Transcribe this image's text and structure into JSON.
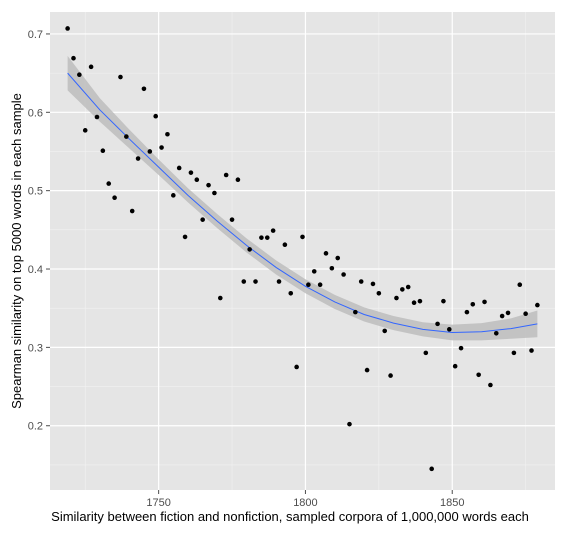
{
  "chart_data": {
    "type": "scatter",
    "xlabel": "Similarity between fiction and nonfiction, sampled corpora of 1,000,000 words each",
    "ylabel": "Spearman similarity on top 5000 words in each sample",
    "xlim": [
      1713,
      1885
    ],
    "ylim": [
      0.118,
      0.728
    ],
    "x_ticks": [
      1750,
      1800,
      1850
    ],
    "y_ticks": [
      0.2,
      0.3,
      0.4,
      0.5,
      0.6,
      0.7
    ],
    "x_tick_labels": [
      "1750",
      "1800",
      "1850"
    ],
    "y_tick_labels": [
      "0.2",
      "0.3",
      "0.4",
      "0.5",
      "0.6",
      "0.7"
    ],
    "grid": true,
    "colors": {
      "panel": "#e5e5e5",
      "grid_major": "#ffffff",
      "grid_minor": "#f2f2f2",
      "points": "#000000",
      "trend": "#3366ff",
      "band": "#bdbdbd"
    },
    "series": [
      {
        "type": "scatter",
        "points": [
          [
            1719,
            0.707
          ],
          [
            1721,
            0.669
          ],
          [
            1723,
            0.648
          ],
          [
            1725,
            0.577
          ],
          [
            1727,
            0.658
          ],
          [
            1729,
            0.594
          ],
          [
            1731,
            0.551
          ],
          [
            1733,
            0.509
          ],
          [
            1735,
            0.491
          ],
          [
            1737,
            0.645
          ],
          [
            1739,
            0.569
          ],
          [
            1741,
            0.474
          ],
          [
            1743,
            0.541
          ],
          [
            1745,
            0.63
          ],
          [
            1747,
            0.55
          ],
          [
            1749,
            0.595
          ],
          [
            1751,
            0.555
          ],
          [
            1753,
            0.572
          ],
          [
            1755,
            0.494
          ],
          [
            1757,
            0.529
          ],
          [
            1759,
            0.441
          ],
          [
            1761,
            0.523
          ],
          [
            1763,
            0.514
          ],
          [
            1765,
            0.463
          ],
          [
            1767,
            0.507
          ],
          [
            1769,
            0.497
          ],
          [
            1771,
            0.363
          ],
          [
            1773,
            0.52
          ],
          [
            1775,
            0.463
          ],
          [
            1777,
            0.514
          ],
          [
            1779,
            0.384
          ],
          [
            1781,
            0.425
          ],
          [
            1783,
            0.384
          ],
          [
            1785,
            0.44
          ],
          [
            1787,
            0.44
          ],
          [
            1789,
            0.449
          ],
          [
            1791,
            0.384
          ],
          [
            1793,
            0.431
          ],
          [
            1795,
            0.369
          ],
          [
            1797,
            0.275
          ],
          [
            1799,
            0.441
          ],
          [
            1801,
            0.38
          ],
          [
            1803,
            0.397
          ],
          [
            1805,
            0.38
          ],
          [
            1807,
            0.42
          ],
          [
            1809,
            0.401
          ],
          [
            1811,
            0.414
          ],
          [
            1813,
            0.393
          ],
          [
            1815,
            0.202
          ],
          [
            1817,
            0.345
          ],
          [
            1819,
            0.384
          ],
          [
            1821,
            0.271
          ],
          [
            1823,
            0.381
          ],
          [
            1825,
            0.369
          ],
          [
            1827,
            0.321
          ],
          [
            1829,
            0.264
          ],
          [
            1831,
            0.363
          ],
          [
            1833,
            0.374
          ],
          [
            1835,
            0.377
          ],
          [
            1837,
            0.357
          ],
          [
            1839,
            0.359
          ],
          [
            1841,
            0.293
          ],
          [
            1843,
            0.145
          ],
          [
            1845,
            0.33
          ],
          [
            1847,
            0.359
          ],
          [
            1849,
            0.323
          ],
          [
            1851,
            0.276
          ],
          [
            1853,
            0.299
          ],
          [
            1855,
            0.345
          ],
          [
            1857,
            0.355
          ],
          [
            1859,
            0.265
          ],
          [
            1861,
            0.358
          ],
          [
            1863,
            0.252
          ],
          [
            1865,
            0.318
          ],
          [
            1867,
            0.34
          ],
          [
            1869,
            0.344
          ],
          [
            1871,
            0.293
          ],
          [
            1873,
            0.38
          ],
          [
            1875,
            0.343
          ],
          [
            1877,
            0.296
          ],
          [
            1879,
            0.354
          ]
        ]
      },
      {
        "type": "line",
        "x": [
          1719,
          1730,
          1740,
          1750,
          1760,
          1770,
          1780,
          1790,
          1800,
          1810,
          1820,
          1830,
          1840,
          1850,
          1860,
          1870,
          1879
        ],
        "y": [
          0.65,
          0.603,
          0.566,
          0.53,
          0.494,
          0.461,
          0.43,
          0.402,
          0.378,
          0.358,
          0.342,
          0.331,
          0.323,
          0.319,
          0.32,
          0.324,
          0.33
        ],
        "band_lower": [
          0.628,
          0.588,
          0.554,
          0.52,
          0.485,
          0.452,
          0.421,
          0.393,
          0.369,
          0.349,
          0.333,
          0.322,
          0.314,
          0.309,
          0.309,
          0.311,
          0.313
        ],
        "band_upper": [
          0.672,
          0.618,
          0.578,
          0.54,
          0.503,
          0.47,
          0.439,
          0.411,
          0.387,
          0.367,
          0.351,
          0.34,
          0.332,
          0.329,
          0.331,
          0.337,
          0.347
        ]
      }
    ]
  }
}
